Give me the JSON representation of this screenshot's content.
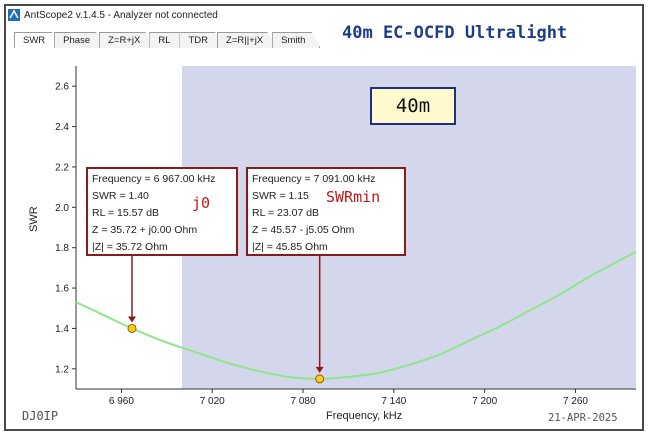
{
  "window": {
    "title": "AntScope2 v.1.4.5 - Analyzer not connected",
    "icon": "antscope-app-icon"
  },
  "tabs": [
    {
      "label": "SWR",
      "active": true
    },
    {
      "label": "Phase",
      "active": false
    },
    {
      "label": "Z=R+jX",
      "active": false
    },
    {
      "label": "RL",
      "active": false
    },
    {
      "label": "TDR",
      "active": false
    },
    {
      "label": "Z=R||+jX",
      "active": false
    },
    {
      "label": "Smith",
      "active": false
    }
  ],
  "headline": "40m EC-OCFD Ultralight",
  "band_label": "40m",
  "marker1": {
    "frequency": "Frequency = 6 967.00 kHz",
    "swr": "SWR = 1.40",
    "rl": "RL = 15.57 dB",
    "z": "Z = 35.72 + j0.00 Ohm",
    "zmag": "|Z| = 35.72 Ohm",
    "tag": "j0"
  },
  "marker2": {
    "frequency": "Frequency = 7 091.00 kHz",
    "swr": "SWR = 1.15",
    "rl": "RL = 23.07 dB",
    "z": "Z = 45.57 - j5.05 Ohm",
    "zmag": "|Z| = 45.85 Ohm",
    "tag": "SWRmin"
  },
  "footer": {
    "callsign": "DJ0IP",
    "date": "21-APR-2025"
  },
  "colors": {
    "band_fill": "#d4d6ec",
    "curve": "#8ee68a",
    "marker_fill": "#f5d400",
    "marker_box_border": "#8b1a1a",
    "headline": "#1f3c88"
  },
  "chart_data": {
    "type": "line",
    "xlabel": "Frequency, kHz",
    "ylabel": "SWR",
    "xlim": [
      6930,
      7300
    ],
    "ylim": [
      1.1,
      2.7
    ],
    "x_ticks": [
      "6 960",
      "7 020",
      "7 080",
      "7 140",
      "7 200",
      "7 260"
    ],
    "x_tick_values": [
      6960,
      7020,
      7080,
      7140,
      7200,
      7260
    ],
    "y_ticks": [
      "1.2",
      "1.4",
      "1.6",
      "1.8",
      "2.0",
      "2.2",
      "2.4",
      "2.6"
    ],
    "y_tick_values": [
      1.2,
      1.4,
      1.6,
      1.8,
      2.0,
      2.2,
      2.4,
      2.6
    ],
    "band_highlight": [
      7000,
      7300
    ],
    "series": [
      {
        "x": [
          6930,
          6950,
          6967,
          6990,
          7010,
          7030,
          7050,
          7070,
          7091,
          7110,
          7130,
          7150,
          7170,
          7190,
          7210,
          7230,
          7250,
          7270,
          7290,
          7300
        ],
        "y": [
          1.53,
          1.46,
          1.4,
          1.33,
          1.28,
          1.23,
          1.19,
          1.16,
          1.15,
          1.16,
          1.18,
          1.22,
          1.27,
          1.34,
          1.41,
          1.49,
          1.57,
          1.66,
          1.74,
          1.78
        ]
      }
    ],
    "markers": [
      {
        "x": 6967,
        "y": 1.4
      },
      {
        "x": 7091,
        "y": 1.15
      }
    ]
  }
}
